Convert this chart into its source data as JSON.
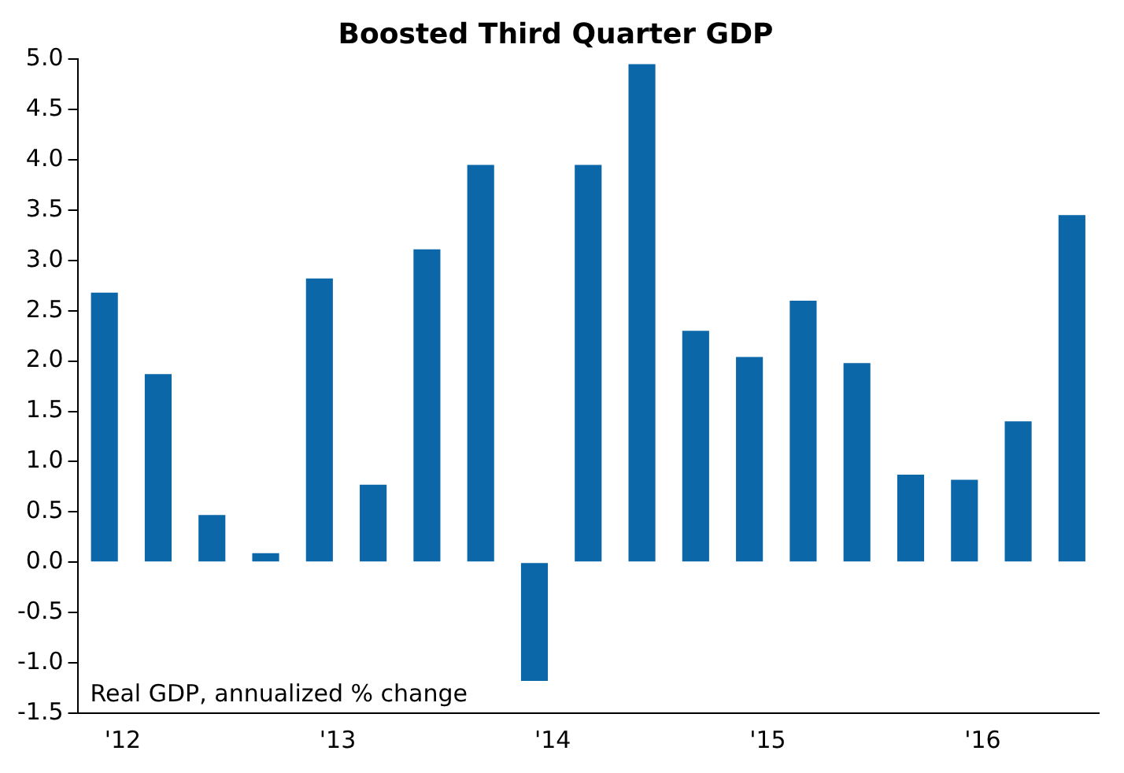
{
  "chart_data": {
    "type": "bar",
    "title": "Boosted Third Quarter GDP",
    "categories": [
      "'12",
      null,
      null,
      null,
      "'13",
      null,
      null,
      null,
      "'14",
      null,
      null,
      null,
      "'15",
      null,
      null,
      null,
      "'16",
      null,
      null
    ],
    "values": [
      2.68,
      1.87,
      0.47,
      0.09,
      2.82,
      0.77,
      3.11,
      3.95,
      -1.18,
      3.95,
      4.95,
      2.3,
      2.04,
      2.6,
      1.98,
      0.87,
      0.82,
      1.4,
      3.45
    ],
    "color": "#0b67a8",
    "ylim": [
      -1.5,
      5
    ],
    "yticks": [
      {
        "value": -1.5,
        "label": "-1.5"
      },
      {
        "value": -1,
        "label": "-1.0"
      },
      {
        "value": -0.5,
        "label": "-0.5"
      },
      {
        "value": 0,
        "label": "0.0"
      },
      {
        "value": 0.5,
        "label": "0.5"
      },
      {
        "value": 1,
        "label": "1.0"
      },
      {
        "value": 1.5,
        "label": "1.5"
      },
      {
        "value": 2,
        "label": "2.0"
      },
      {
        "value": 2.5,
        "label": "2.5"
      },
      {
        "value": 3,
        "label": "3.0"
      },
      {
        "value": 3.5,
        "label": "3.5"
      },
      {
        "value": 4,
        "label": "4.0"
      },
      {
        "value": 4.5,
        "label": "4.5"
      },
      {
        "value": 5,
        "label": "5.0"
      }
    ],
    "annotations": [
      "Real GDP, annualized % change"
    ],
    "grid": false,
    "legend": false
  }
}
